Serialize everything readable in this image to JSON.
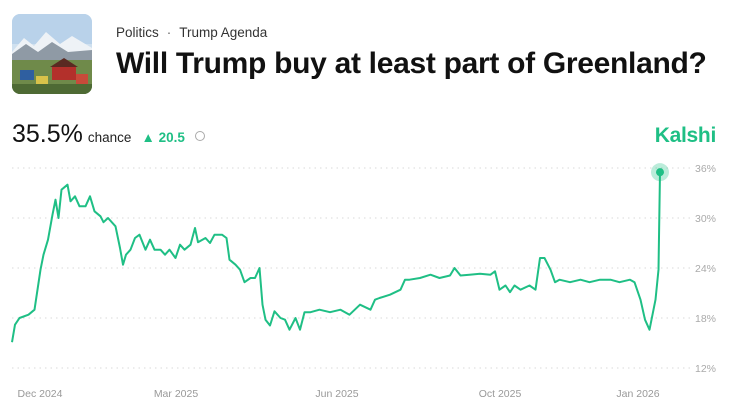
{
  "header": {
    "breadcrumb": [
      "Politics",
      "Trump Agenda"
    ],
    "breadcrumb_separator": "·",
    "title": "Will Trump buy at least part of Greenland?",
    "thumbnail_icon": "greenland-town-photo"
  },
  "stats": {
    "probability": "35.5%",
    "chance_label": "chance",
    "change": "20.5",
    "change_direction": "up",
    "info_icon": "info-icon"
  },
  "brand": {
    "name": "Kalshi",
    "color": "#1fbf85"
  },
  "chart_data": {
    "type": "line",
    "title": "",
    "xlabel": "",
    "ylabel": "",
    "ylim": [
      12,
      36
    ],
    "y_ticks": [
      "36%",
      "30%",
      "24%",
      "18%",
      "12%"
    ],
    "y_tick_values": [
      36,
      30,
      24,
      18,
      12
    ],
    "x_ticks": [
      "Dec 2024",
      "Mar 2025",
      "Jun 2025",
      "Oct 2025",
      "Jan 2026"
    ],
    "grid": "horizontal dotted",
    "line_color": "#1fbf85",
    "points": [
      [
        "2024-11-12",
        15.1
      ],
      [
        "2024-11-14",
        17.2
      ],
      [
        "2024-11-17",
        18
      ],
      [
        "2024-11-23",
        18.4
      ],
      [
        "2024-11-27",
        19
      ],
      [
        "2024-12-01",
        23.8
      ],
      [
        "2024-12-03",
        25.6
      ],
      [
        "2024-12-06",
        27.4
      ],
      [
        "2024-12-09",
        30.4
      ],
      [
        "2024-12-11",
        32.2
      ],
      [
        "2024-12-13",
        30
      ],
      [
        "2024-12-15",
        33.4
      ],
      [
        "2024-12-19",
        34
      ],
      [
        "2024-12-21",
        32
      ],
      [
        "2024-12-24",
        32.6
      ],
      [
        "2024-12-27",
        31.4
      ],
      [
        "2024-12-31",
        31.4
      ],
      [
        "2025-01-03",
        32.6
      ],
      [
        "2025-01-06",
        30.8
      ],
      [
        "2025-01-10",
        30.2
      ],
      [
        "2025-01-12",
        29.5
      ],
      [
        "2025-01-15",
        30
      ],
      [
        "2025-01-20",
        29
      ],
      [
        "2025-01-23",
        26.4
      ],
      [
        "2025-01-25",
        24.4
      ],
      [
        "2025-01-27",
        25.6
      ],
      [
        "2025-01-30",
        26.2
      ],
      [
        "2025-02-02",
        27.6
      ],
      [
        "2025-02-05",
        28
      ],
      [
        "2025-02-09",
        26.2
      ],
      [
        "2025-02-12",
        27.4
      ],
      [
        "2025-02-15",
        26.2
      ],
      [
        "2025-02-19",
        26.2
      ],
      [
        "2025-02-22",
        25.6
      ],
      [
        "2025-02-25",
        26.2
      ],
      [
        "2025-03-01",
        25.2
      ],
      [
        "2025-03-04",
        26.8
      ],
      [
        "2025-03-07",
        26.2
      ],
      [
        "2025-03-11",
        26.8
      ],
      [
        "2025-03-14",
        28.8
      ],
      [
        "2025-03-16",
        27.1
      ],
      [
        "2025-03-21",
        27.6
      ],
      [
        "2025-03-24",
        27
      ],
      [
        "2025-03-27",
        28
      ],
      [
        "2025-04-01",
        28
      ],
      [
        "2025-04-04",
        27.6
      ],
      [
        "2025-04-06",
        25
      ],
      [
        "2025-04-10",
        24.4
      ],
      [
        "2025-04-13",
        23.8
      ],
      [
        "2025-04-16",
        22.3
      ],
      [
        "2025-04-20",
        22.8
      ],
      [
        "2025-04-23",
        22.8
      ],
      [
        "2025-04-26",
        24
      ],
      [
        "2025-04-28",
        19.6
      ],
      [
        "2025-04-30",
        17.8
      ],
      [
        "2025-05-03",
        17.1
      ],
      [
        "2025-05-06",
        18.8
      ],
      [
        "2025-05-10",
        18
      ],
      [
        "2025-05-13",
        17.8
      ],
      [
        "2025-05-16",
        16.6
      ],
      [
        "2025-05-20",
        18
      ],
      [
        "2025-05-23",
        16.6
      ],
      [
        "2025-05-26",
        18.7
      ],
      [
        "2025-05-30",
        18.7
      ],
      [
        "2025-06-05",
        19
      ],
      [
        "2025-06-12",
        18.7
      ],
      [
        "2025-06-19",
        19
      ],
      [
        "2025-06-25",
        18.4
      ],
      [
        "2025-07-02",
        19.6
      ],
      [
        "2025-07-09",
        19
      ],
      [
        "2025-07-12",
        20.2
      ],
      [
        "2025-07-15",
        20.4
      ],
      [
        "2025-07-22",
        20.8
      ],
      [
        "2025-07-29",
        21.4
      ],
      [
        "2025-08-01",
        22.6
      ],
      [
        "2025-08-04",
        22.6
      ],
      [
        "2025-08-11",
        22.8
      ],
      [
        "2025-08-18",
        23.2
      ],
      [
        "2025-08-24",
        22.8
      ],
      [
        "2025-08-31",
        23.1
      ],
      [
        "2025-09-03",
        24
      ],
      [
        "2025-09-07",
        23.1
      ],
      [
        "2025-09-13",
        23.2
      ],
      [
        "2025-09-20",
        23.3
      ],
      [
        "2025-09-27",
        23.2
      ],
      [
        "2025-09-30",
        23.6
      ],
      [
        "2025-10-03",
        21.4
      ],
      [
        "2025-10-07",
        21.9
      ],
      [
        "2025-10-10",
        21.1
      ],
      [
        "2025-10-13",
        21.9
      ],
      [
        "2025-10-17",
        21.4
      ],
      [
        "2025-10-23",
        21.9
      ],
      [
        "2025-10-27",
        21.4
      ],
      [
        "2025-10-30",
        25.2
      ],
      [
        "2025-11-02",
        25.2
      ],
      [
        "2025-11-06",
        23.8
      ],
      [
        "2025-11-09",
        22.3
      ],
      [
        "2025-11-12",
        22.6
      ],
      [
        "2025-11-19",
        22.3
      ],
      [
        "2025-11-26",
        22.6
      ],
      [
        "2025-12-02",
        22.3
      ],
      [
        "2025-12-09",
        22.6
      ],
      [
        "2025-12-16",
        22.6
      ],
      [
        "2025-12-22",
        22.3
      ],
      [
        "2025-12-29",
        22.6
      ],
      [
        "2026-01-01",
        22.3
      ],
      [
        "2026-01-05",
        20.2
      ],
      [
        "2026-01-08",
        17.8
      ],
      [
        "2026-01-11",
        16.6
      ],
      [
        "2026-01-15",
        20.2
      ],
      [
        "2026-01-17",
        23.8
      ],
      [
        "2026-01-18",
        35.5
      ]
    ]
  }
}
